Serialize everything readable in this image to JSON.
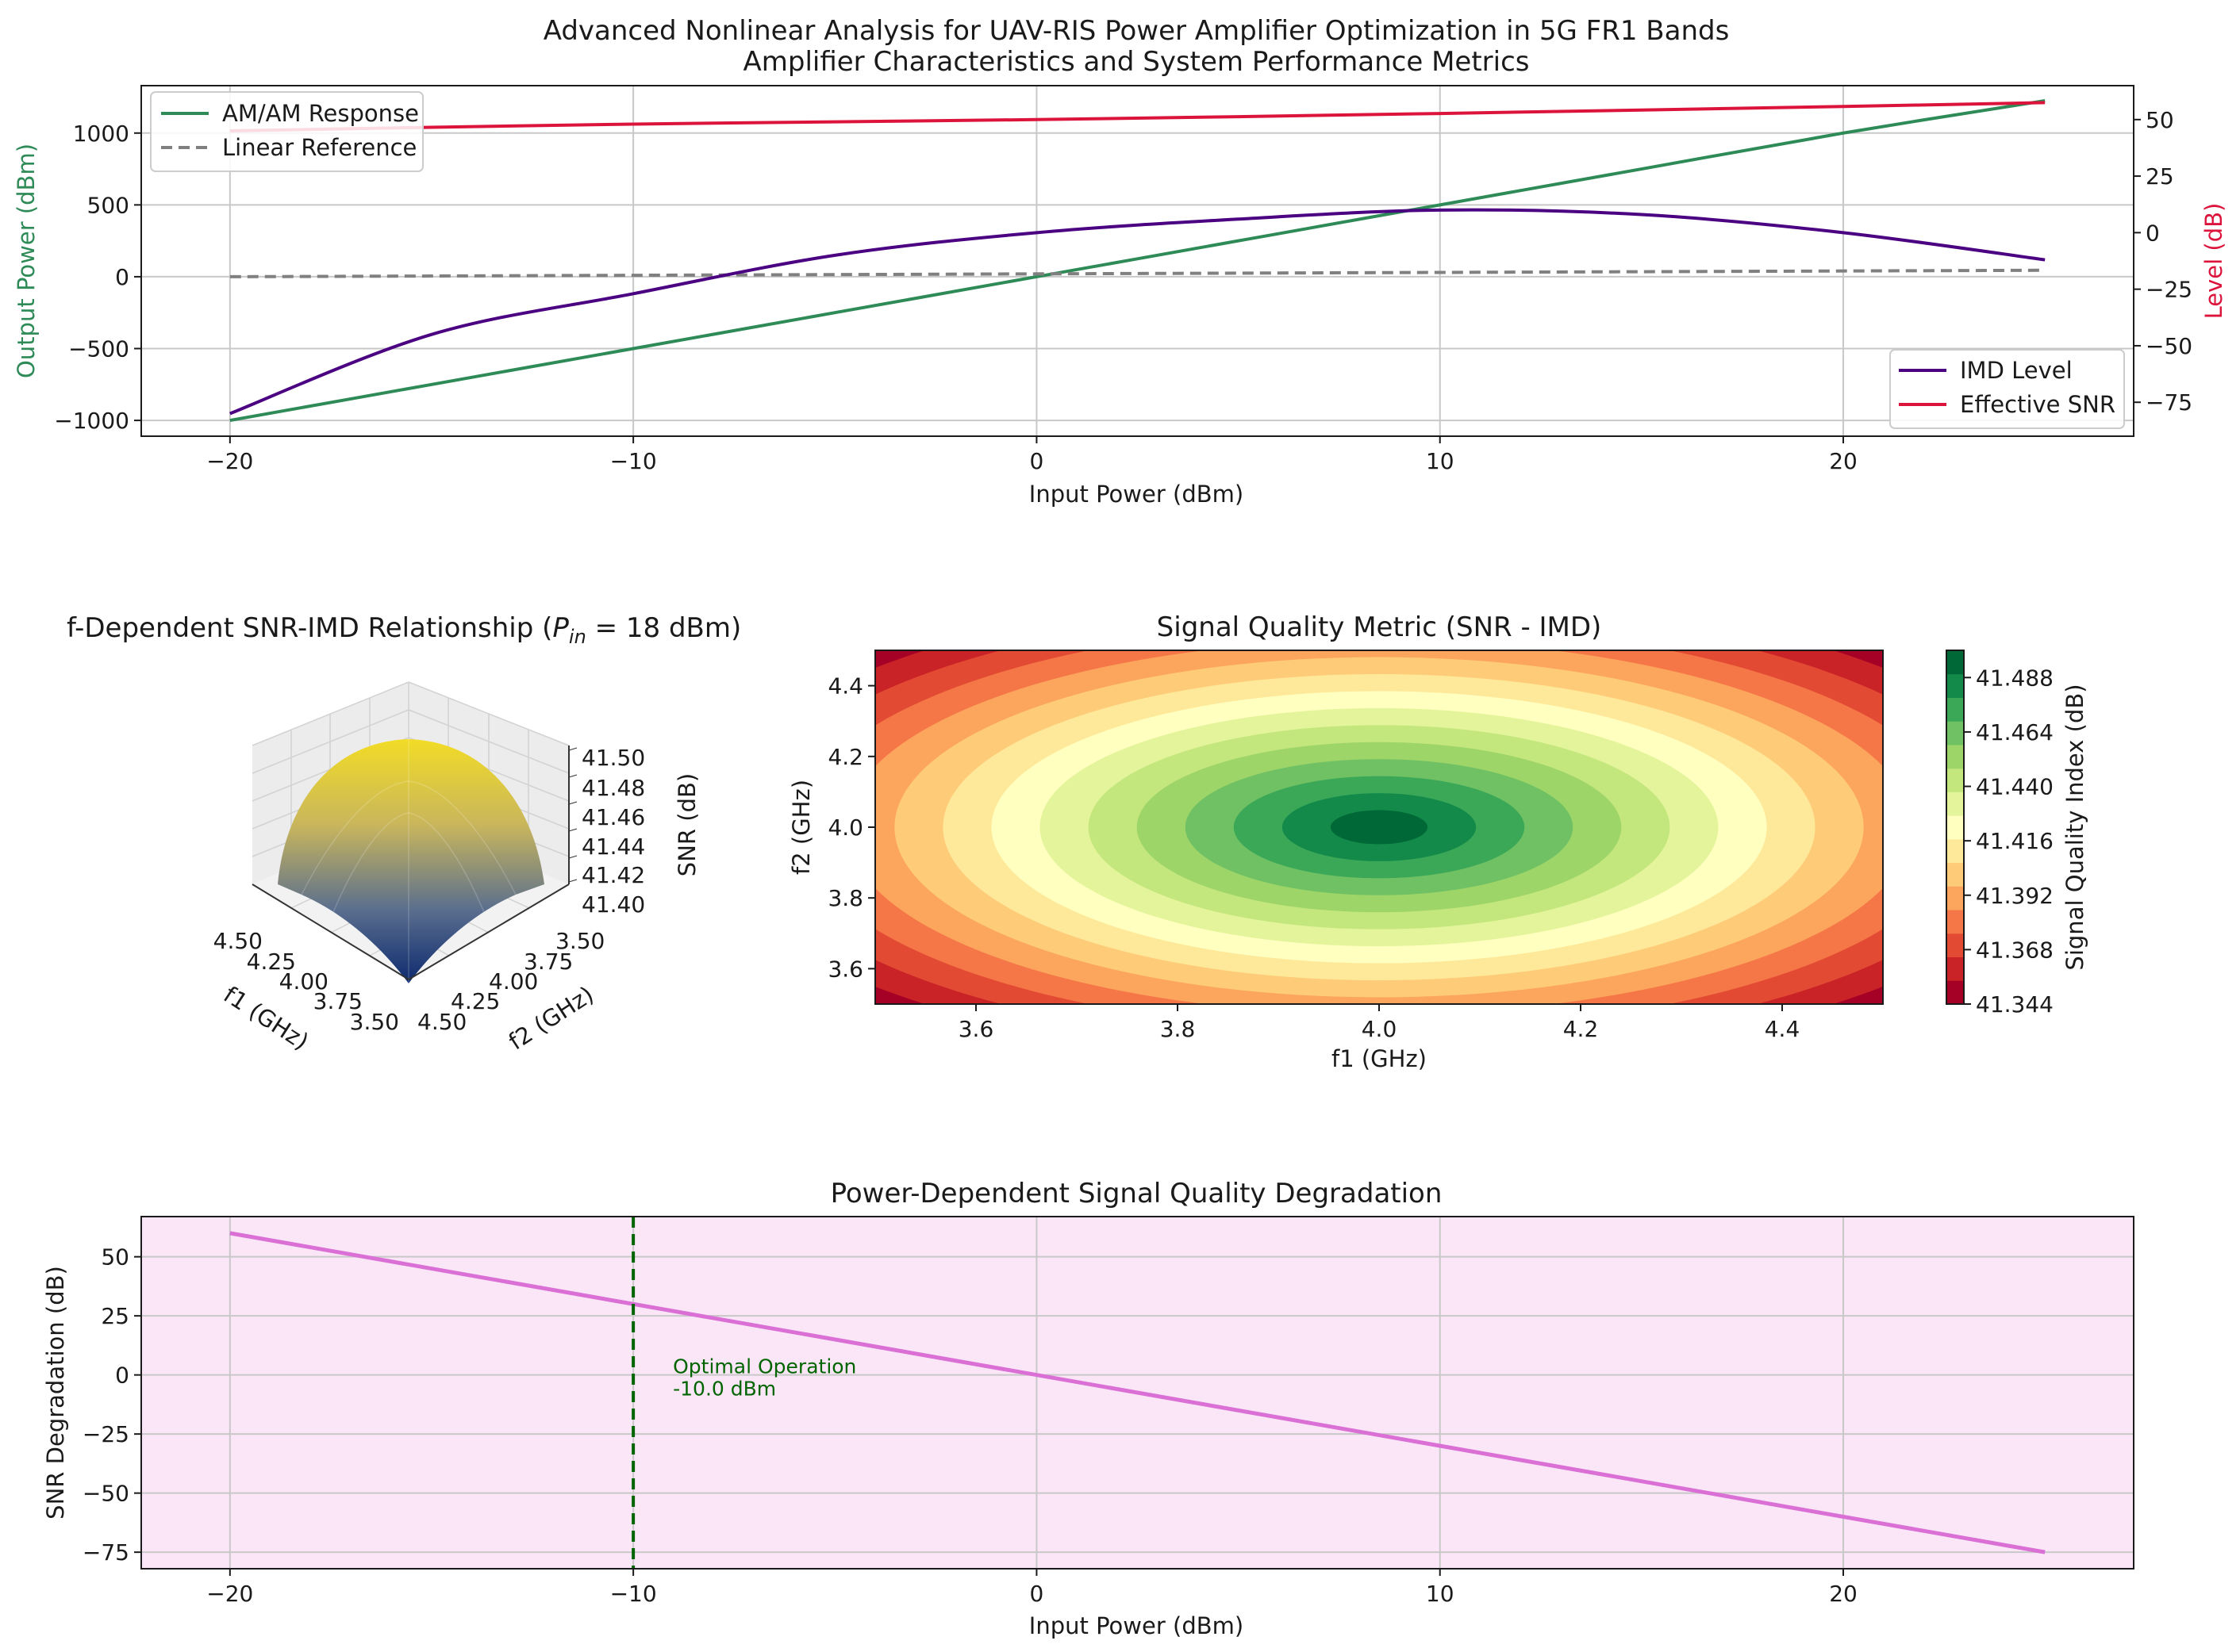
{
  "suptitle": {
    "line1": "Advanced Nonlinear Analysis for UAV-RIS Power Amplifier Optimization in 5G FR1 Bands",
    "line2": "Amplifier Characteristics and System Performance Metrics"
  },
  "colors": {
    "am_am": "#2e8b57",
    "linear_ref": "#808080",
    "imd": "#4b0082",
    "snr": "#dc143c",
    "degradation": "#da70d6",
    "degradation_bg": "#fbe6f8",
    "optimal": "#006400",
    "grid": "#c8c8c8"
  },
  "chart_data": [
    {
      "id": "amplifier",
      "type": "line",
      "xlabel": "Input Power (dBm)",
      "ylabel": "Output Power (dBm)",
      "ylabel_right": "Level (dB)",
      "xlim": [
        -22.2,
        27.2
      ],
      "ylim": [
        -1110,
        1330
      ],
      "ylim_right": [
        -90,
        65
      ],
      "xticks": [
        -20,
        -10,
        0,
        10,
        20
      ],
      "xtick_labels": [
        "−20",
        "−10",
        "0",
        "10",
        "20"
      ],
      "yticks": [
        -1000,
        -500,
        0,
        500,
        1000
      ],
      "ytick_labels": [
        "−1000",
        "−500",
        "0",
        "500",
        "1000"
      ],
      "yticks_right": [
        -75,
        -50,
        -25,
        0,
        25,
        50
      ],
      "ytick_labels_right": [
        "−75",
        "−50",
        "−25",
        "0",
        "25",
        "50"
      ],
      "x": [
        -20,
        -15,
        -10,
        -5,
        0,
        5,
        10,
        15,
        20,
        25
      ],
      "series": [
        {
          "name": "AM/AM Response",
          "axis": "left",
          "style": "solid",
          "values": [
            -1000,
            -750,
            -500,
            -250,
            0,
            250,
            500,
            750,
            1000,
            1225
          ]
        },
        {
          "name": "Linear Reference",
          "axis": "left",
          "style": "dashed",
          "values": [
            0,
            5,
            10,
            15,
            20,
            25,
            30,
            35,
            40,
            45
          ]
        },
        {
          "name": "IMD Level",
          "axis": "right",
          "style": "solid",
          "values": [
            -80,
            -45,
            -27,
            -10,
            0,
            6,
            10,
            8,
            0,
            -12
          ]
        },
        {
          "name": "Effective SNR",
          "axis": "right",
          "style": "solid",
          "values": [
            45,
            46.6,
            48,
            49,
            50,
            51.3,
            52.7,
            54.2,
            55.8,
            57.5
          ]
        }
      ],
      "legend_left": [
        "AM/AM Response",
        "Linear Reference"
      ],
      "legend_right": [
        "IMD Level",
        "Effective SNR"
      ]
    },
    {
      "id": "surface3d",
      "type": "surface",
      "title_prefix": "f-Dependent SNR-IMD Relationship (",
      "title_var": "P",
      "title_sub": "in",
      "title_suffix": " = 18 dBm)",
      "xlabel": "f1 (GHz)",
      "ylabel": "f2 (GHz)",
      "zlabel": "SNR (dB)",
      "xtick_labels": [
        "4.50",
        "4.25",
        "4.00",
        "3.75",
        "3.50"
      ],
      "ytick_labels": [
        "3.50",
        "3.75",
        "4.00",
        "4.25",
        "4.50"
      ],
      "ztick_labels": [
        "41.50",
        "41.48",
        "41.46",
        "41.44",
        "41.42",
        "41.40"
      ],
      "f_range": [
        3.5,
        4.5
      ],
      "z_range": [
        41.4,
        41.5
      ]
    },
    {
      "id": "contour",
      "type": "heatmap",
      "title": "Signal Quality Metric (SNR - IMD)",
      "xlabel": "f1 (GHz)",
      "ylabel": "f2 (GHz)",
      "colorbar_label": "Signal Quality Index (dB)",
      "xlim": [
        3.5,
        4.5
      ],
      "ylim": [
        3.5,
        4.5
      ],
      "xticks": [
        3.6,
        3.8,
        4.0,
        4.2,
        4.4
      ],
      "xtick_labels": [
        "3.6",
        "3.8",
        "4.0",
        "4.2",
        "4.4"
      ],
      "yticks": [
        3.6,
        3.8,
        4.0,
        4.2,
        4.4
      ],
      "ytick_labels": [
        "3.6",
        "3.8",
        "4.0",
        "4.2",
        "4.4"
      ],
      "center": [
        4.0,
        4.0
      ],
      "levels": 15,
      "value_range": [
        41.344,
        41.5
      ],
      "colorbar_ticks": [
        41.344,
        41.368,
        41.392,
        41.416,
        41.44,
        41.464,
        41.488
      ],
      "colorbar_tick_labels": [
        "41.344",
        "41.368",
        "41.392",
        "41.416",
        "41.440",
        "41.464",
        "41.488"
      ],
      "palette": [
        "#a50026",
        "#d73027",
        "#f46d43",
        "#fdae61",
        "#fee08b",
        "#ffffbf",
        "#d9ef8b",
        "#a6d96a",
        "#66bd63",
        "#1a9850",
        "#006837"
      ]
    },
    {
      "id": "degradation",
      "type": "line",
      "title": "Power-Dependent Signal Quality Degradation",
      "xlabel": "Input Power (dBm)",
      "ylabel": "SNR Degradation (dB)",
      "xlim": [
        -22.2,
        27.2
      ],
      "ylim": [
        -82,
        67
      ],
      "xticks": [
        -20,
        -10,
        0,
        10,
        20
      ],
      "xtick_labels": [
        "−20",
        "−10",
        "0",
        "10",
        "20"
      ],
      "yticks": [
        -75,
        -50,
        -25,
        0,
        25,
        50
      ],
      "ytick_labels": [
        "−75",
        "−50",
        "−25",
        "0",
        "25",
        "50"
      ],
      "x": [
        -20,
        25
      ],
      "values": [
        60,
        -75
      ],
      "optimal_x": -10,
      "annotation_line1": "Optimal Operation",
      "annotation_line2": "-10.0 dBm"
    }
  ]
}
